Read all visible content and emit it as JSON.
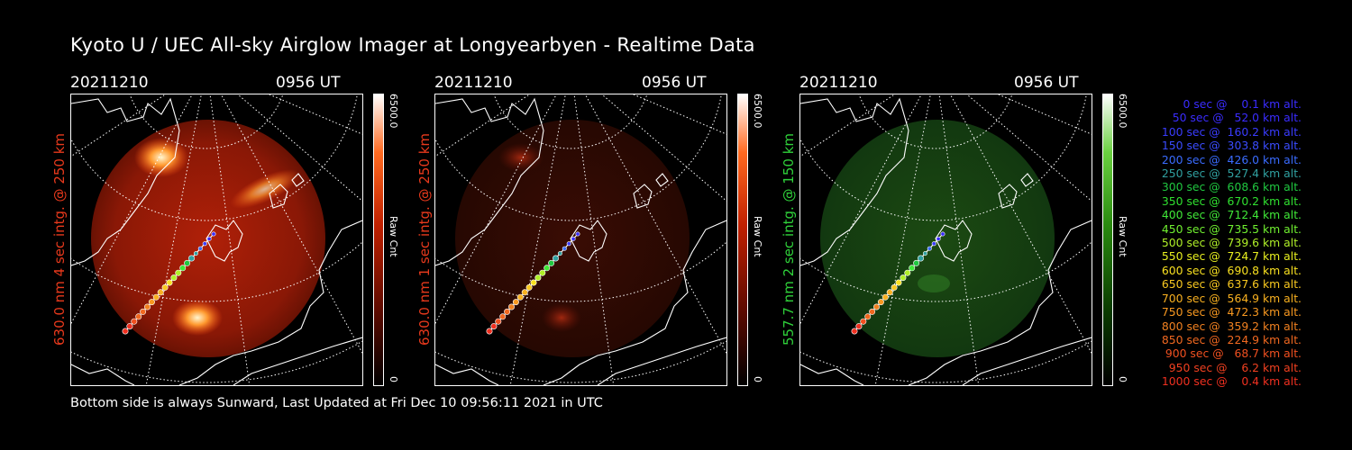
{
  "title": "Kyoto U / UEC All-sky Airglow Imager at Longyearbyen - Realtime Data",
  "footer": "Bottom side is always Sunward, Last Updated at Fri Dec 10 09:56:11 2021 in UTC",
  "colors": {
    "red": "#e8391c",
    "green": "#2fd13a",
    "background": "#000000",
    "foreground": "#ffffff"
  },
  "panels": [
    {
      "date": "20211210",
      "time": "0956 UT",
      "ylabel": "630.0 nm 4 sec intg. @ 250 km",
      "cbar_max": "6500.0",
      "cbar_min": "0",
      "cbar_label": "Raw Cnt",
      "color": "#e8391c"
    },
    {
      "date": "20211210",
      "time": "0956 UT",
      "ylabel": "630.0 nm 1 sec intg. @ 250 km",
      "cbar_max": "6500.0",
      "cbar_min": "0",
      "cbar_label": "Raw Cnt",
      "color": "#e8391c"
    },
    {
      "date": "20211210",
      "time": "0956 UT",
      "ylabel": "557.7 nm 2 sec intg. @ 150 km",
      "cbar_max": "6500.0",
      "cbar_min": "0",
      "cbar_label": "Raw Cnt",
      "color": "#2fd13a"
    }
  ],
  "legend": [
    {
      "text": "   0 sec @    0.1 km alt.",
      "color": "#3a2cff"
    },
    {
      "text": "  50 sec @   52.0 km alt.",
      "color": "#3a2cff"
    },
    {
      "text": " 100 sec @  160.2 km alt.",
      "color": "#3a3cff"
    },
    {
      "text": " 150 sec @  303.8 km alt.",
      "color": "#3a4cff"
    },
    {
      "text": " 200 sec @  426.0 km alt.",
      "color": "#3a6cff"
    },
    {
      "text": " 250 sec @  527.4 km alt.",
      "color": "#30a0a0"
    },
    {
      "text": " 300 sec @  608.6 km alt.",
      "color": "#20c840"
    },
    {
      "text": " 350 sec @  670.2 km alt.",
      "color": "#30e030"
    },
    {
      "text": " 400 sec @  712.4 km alt.",
      "color": "#40e838"
    },
    {
      "text": " 450 sec @  735.5 km alt.",
      "color": "#70f030"
    },
    {
      "text": " 500 sec @  739.6 km alt.",
      "color": "#b0f028"
    },
    {
      "text": " 550 sec @  724.7 km alt.",
      "color": "#e8f020"
    },
    {
      "text": " 600 sec @  690.8 km alt.",
      "color": "#f8e020"
    },
    {
      "text": " 650 sec @  637.6 km alt.",
      "color": "#f8c820"
    },
    {
      "text": " 700 sec @  564.9 km alt.",
      "color": "#f8b020"
    },
    {
      "text": " 750 sec @  472.3 km alt.",
      "color": "#f89820"
    },
    {
      "text": " 800 sec @  359.2 km alt.",
      "color": "#f08020"
    },
    {
      "text": " 850 sec @  224.9 km alt.",
      "color": "#f06820"
    },
    {
      "text": " 900 sec @   68.7 km alt.",
      "color": "#f05020"
    },
    {
      "text": " 950 sec @    6.2 km alt.",
      "color": "#f04020"
    },
    {
      "text": "1000 sec @    0.4 km alt.",
      "color": "#f03020"
    }
  ]
}
